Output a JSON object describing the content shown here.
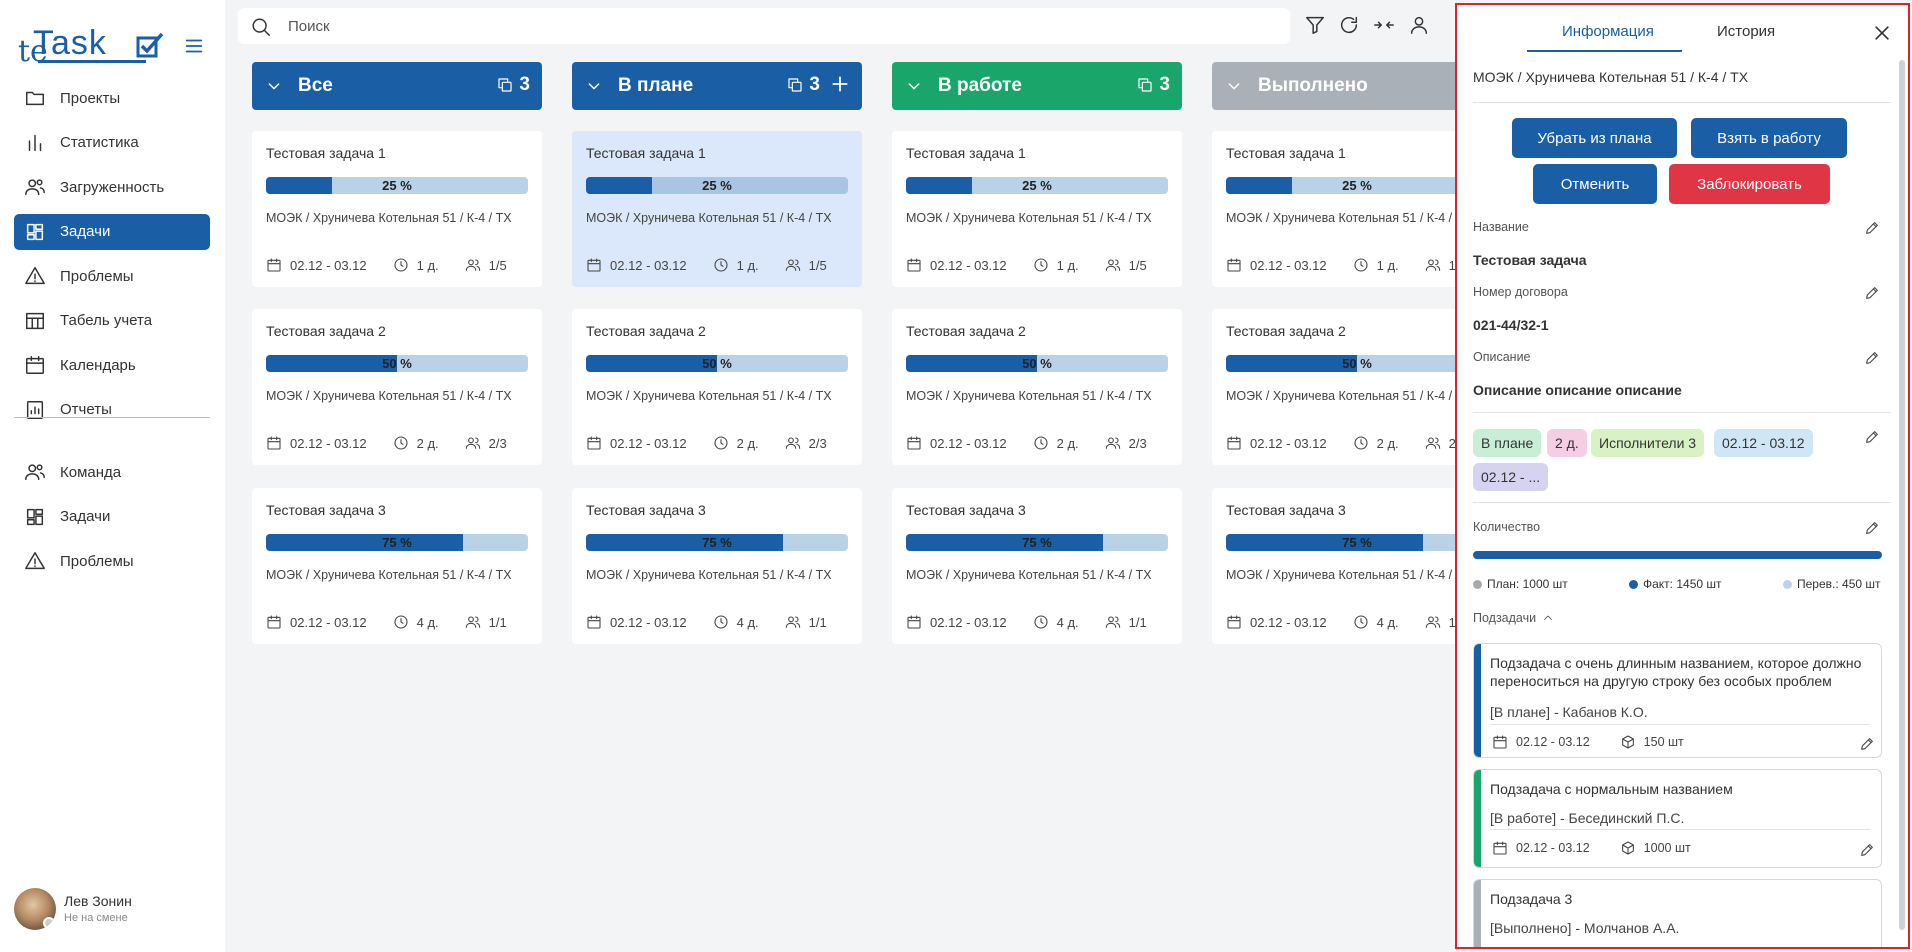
{
  "app": {
    "logo_prefix": "te",
    "logo_name": "Task"
  },
  "sidebar": {
    "items": [
      {
        "label": "Проекты",
        "icon": "folder-icon"
      },
      {
        "label": "Статистика",
        "icon": "bar-chart-icon"
      },
      {
        "label": "Загруженность",
        "icon": "users-icon"
      },
      {
        "label": "Задачи",
        "icon": "dashboard-icon",
        "active": true
      },
      {
        "label": "Проблемы",
        "icon": "warning-icon"
      },
      {
        "label": "Табель учета",
        "icon": "table-icon"
      },
      {
        "label": "Календарь",
        "icon": "calendar-icon"
      },
      {
        "label": "Отчеты",
        "icon": "report-icon"
      }
    ],
    "items2": [
      {
        "label": "Команда",
        "icon": "users-icon"
      },
      {
        "label": "Задачи",
        "icon": "dashboard-icon"
      },
      {
        "label": "Проблемы",
        "icon": "warning-icon"
      }
    ],
    "user": {
      "name": "Лев Зонин",
      "status": "Не на смене"
    }
  },
  "search": {
    "placeholder": "Поиск"
  },
  "columns": [
    {
      "title": "Все",
      "count": "3",
      "color": "#1a5ea5",
      "add": false
    },
    {
      "title": "В плане",
      "count": "3",
      "color": "#1a5ea5",
      "add": true
    },
    {
      "title": "В работе",
      "count": "3",
      "color": "#1aa56b",
      "add": false
    },
    {
      "title": "Выполнено",
      "count": "3",
      "color": "#a9b0b8",
      "add": false
    }
  ],
  "cards": [
    {
      "title": "Тестовая задача 1",
      "progress": 25,
      "progress_label": "25 %",
      "path": "МОЭК / Хруничева Котельная 51 / К-4 / ТХ",
      "dates": "02.12 - 03.12",
      "duration": "1 д.",
      "people": "1/5"
    },
    {
      "title": "Тестовая задача 2",
      "progress": 50,
      "progress_label": "50 %",
      "path": "МОЭК / Хруничева Котельная 51 / К-4 / ТХ",
      "dates": "02.12 - 03.12",
      "duration": "2 д.",
      "people": "2/3"
    },
    {
      "title": "Тестовая задача 3",
      "progress": 75,
      "progress_label": "75 %",
      "path": "МОЭК / Хруничева Котельная 51 / К-4 / ТХ",
      "dates": "02.12 - 03.12",
      "duration": "4 д.",
      "people": "1/1"
    }
  ],
  "selected": {
    "column": 1,
    "card": 0
  },
  "panel": {
    "tabs": [
      "Информация",
      "История"
    ],
    "breadcrumb": "МОЭК / Хруничева Котельная 51 / К-4 / ТХ",
    "buttons": {
      "remove_plan": "Убрать из плана",
      "take_work": "Взять в работу",
      "cancel": "Отменить",
      "block": "Заблокировать"
    },
    "fields": {
      "name_label": "Название",
      "name_value": "Тестовая задача",
      "contract_label": "Номер договора",
      "contract_value": "021-44/32-1",
      "desc_label": "Описание",
      "desc_value": "Описание описание описание"
    },
    "chips": [
      {
        "text": "В плане",
        "color": "#c8efd6"
      },
      {
        "text": "2 д.",
        "color": "#f7cde3"
      },
      {
        "text": "Исполнители 3",
        "color": "#d8f2c4"
      },
      {
        "text": "02.12 - 03.12",
        "color": "#cfe6f7"
      },
      {
        "text": "02.12 - ...",
        "color": "#d6d3f0"
      }
    ],
    "quantity": {
      "label": "Количество",
      "plan": "План: 1000 шт",
      "fact": "Факт: 1450 шт",
      "over": "Перев.: 450 шт",
      "plan_color": "#a9a9a9",
      "fact_color": "#1a5ea5",
      "over_color": "#b9d2e8"
    },
    "subtasks_label": "Подзадачи",
    "subtasks": [
      {
        "title": "Подзадача с очень длинным названием, которое должно переноситься на другую строку без особых проблем",
        "status": "[В плане] - Кабанов К.О.",
        "dates": "02.12 - 03.12",
        "qty": "150 шт",
        "color": "#1a5ea5"
      },
      {
        "title": "Подзадача с нормальным названием",
        "status": "[В работе] - Бесединский П.С.",
        "dates": "02.12 - 03.12",
        "qty": "1000 шт",
        "color": "#1aa56b"
      },
      {
        "title": "Подзадача 3",
        "status": "[Выполнено] - Молчанов А.А.",
        "dates": "",
        "qty": "",
        "color": "#a9b0b8"
      }
    ]
  }
}
